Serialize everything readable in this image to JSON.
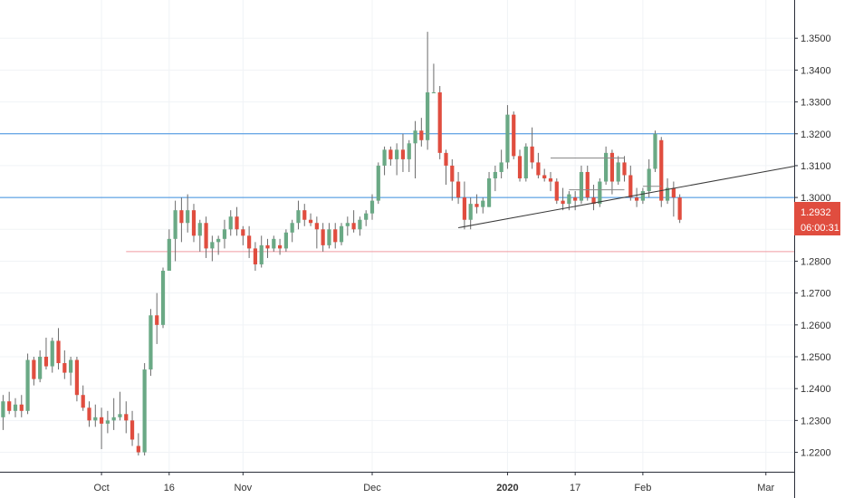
{
  "colors": {
    "up": "#6aa985",
    "down": "#e04d3f",
    "wick": "#6b6b6b",
    "grid": "#f0f3f6",
    "axis": "#2a2e39",
    "horizontal_line_blue": "#3d8ee0",
    "horizontal_line_red": "#f19aa0",
    "trendline": "#3a3a3a",
    "price_tag_bg": "#e04d3f"
  },
  "chart_data": {
    "type": "candlestick",
    "title": "",
    "y_axis_side": "right",
    "ylim": [
      1.2139,
      1.362
    ],
    "y_ticks": [
      "1.2200",
      "1.2300",
      "1.2400",
      "1.2500",
      "1.2600",
      "1.2700",
      "1.2800",
      "1.2900",
      "1.3000",
      "1.3100",
      "1.3200",
      "1.3300",
      "1.3400",
      "1.3500"
    ],
    "x_ticks": [
      {
        "label": "Oct",
        "bar": 16,
        "bold": false
      },
      {
        "label": "16",
        "bar": 27,
        "bold": false
      },
      {
        "label": "Nov",
        "bar": 39,
        "bold": false
      },
      {
        "label": "Dec",
        "bar": 60,
        "bold": false
      },
      {
        "label": "2020",
        "bar": 82,
        "bold": true
      },
      {
        "label": "17",
        "bar": 93,
        "bold": false
      },
      {
        "label": "Feb",
        "bar": 104,
        "bold": false
      },
      {
        "label": "Mar",
        "bar": 124,
        "bold": false
      }
    ],
    "x_range_bars": [
      -0.5,
      128.6
    ],
    "grid": true,
    "candles": [
      [
        1.231,
        1.238,
        1.227,
        1.236
      ],
      [
        1.236,
        1.239,
        1.232,
        1.233
      ],
      [
        1.233,
        1.237,
        1.231,
        1.235
      ],
      [
        1.235,
        1.238,
        1.231,
        1.233
      ],
      [
        1.233,
        1.251,
        1.232,
        1.249
      ],
      [
        1.249,
        1.25,
        1.241,
        1.243
      ],
      [
        1.243,
        1.252,
        1.242,
        1.25
      ],
      [
        1.25,
        1.256,
        1.246,
        1.247
      ],
      [
        1.247,
        1.256,
        1.245,
        1.255
      ],
      [
        1.255,
        1.259,
        1.246,
        1.248
      ],
      [
        1.248,
        1.252,
        1.243,
        1.245
      ],
      [
        1.245,
        1.25,
        1.241,
        1.249
      ],
      [
        1.249,
        1.25,
        1.236,
        1.238
      ],
      [
        1.238,
        1.241,
        1.233,
        1.234
      ],
      [
        1.234,
        1.236,
        1.228,
        1.23
      ],
      [
        1.23,
        1.235,
        1.228,
        1.231
      ],
      [
        1.231,
        1.234,
        1.221,
        1.229
      ],
      [
        1.229,
        1.233,
        1.226,
        1.23
      ],
      [
        1.23,
        1.237,
        1.227,
        1.231
      ],
      [
        1.231,
        1.239,
        1.23,
        1.232
      ],
      [
        1.232,
        1.236,
        1.226,
        1.23
      ],
      [
        1.23,
        1.233,
        1.222,
        1.224
      ],
      [
        1.222,
        1.226,
        1.219,
        1.22
      ],
      [
        1.22,
        1.248,
        1.219,
        1.246
      ],
      [
        1.246,
        1.265,
        1.244,
        1.263
      ],
      [
        1.263,
        1.27,
        1.254,
        1.26
      ],
      [
        1.26,
        1.278,
        1.259,
        1.277
      ],
      [
        1.277,
        1.29,
        1.277,
        1.287
      ],
      [
        1.287,
        1.299,
        1.28,
        1.296
      ],
      [
        1.296,
        1.3,
        1.286,
        1.292
      ],
      [
        1.292,
        1.301,
        1.289,
        1.296
      ],
      [
        1.296,
        1.298,
        1.286,
        1.288
      ],
      [
        1.288,
        1.293,
        1.283,
        1.292
      ],
      [
        1.292,
        1.294,
        1.281,
        1.284
      ],
      [
        1.284,
        1.288,
        1.28,
        1.286
      ],
      [
        1.286,
        1.288,
        1.282,
        1.287
      ],
      [
        1.287,
        1.293,
        1.284,
        1.29
      ],
      [
        1.29,
        1.296,
        1.288,
        1.294
      ],
      [
        1.294,
        1.297,
        1.288,
        1.29
      ],
      [
        1.29,
        1.291,
        1.285,
        1.288
      ],
      [
        1.288,
        1.291,
        1.281,
        1.284
      ],
      [
        1.284,
        1.286,
        1.277,
        1.279
      ],
      [
        1.279,
        1.288,
        1.278,
        1.285
      ],
      [
        1.285,
        1.287,
        1.281,
        1.284
      ],
      [
        1.284,
        1.288,
        1.283,
        1.287
      ],
      [
        1.285,
        1.287,
        1.282,
        1.284
      ],
      [
        1.284,
        1.29,
        1.283,
        1.289
      ],
      [
        1.289,
        1.293,
        1.286,
        1.292
      ],
      [
        1.292,
        1.299,
        1.29,
        1.296
      ],
      [
        1.296,
        1.298,
        1.291,
        1.293
      ],
      [
        1.293,
        1.295,
        1.291,
        1.292
      ],
      [
        1.292,
        1.294,
        1.284,
        1.29
      ],
      [
        1.29,
        1.292,
        1.283,
        1.285
      ],
      [
        1.285,
        1.292,
        1.284,
        1.29
      ],
      [
        1.29,
        1.292,
        1.284,
        1.286
      ],
      [
        1.286,
        1.292,
        1.285,
        1.291
      ],
      [
        1.291,
        1.294,
        1.288,
        1.292
      ],
      [
        1.292,
        1.296,
        1.289,
        1.29
      ],
      [
        1.29,
        1.294,
        1.288,
        1.293
      ],
      [
        1.293,
        1.296,
        1.291,
        1.295
      ],
      [
        1.295,
        1.301,
        1.293,
        1.299
      ],
      [
        1.299,
        1.311,
        1.298,
        1.31
      ],
      [
        1.31,
        1.316,
        1.307,
        1.315
      ],
      [
        1.315,
        1.316,
        1.31,
        1.312
      ],
      [
        1.312,
        1.317,
        1.307,
        1.315
      ],
      [
        1.315,
        1.32,
        1.308,
        1.312
      ],
      [
        1.312,
        1.318,
        1.308,
        1.317
      ],
      [
        1.317,
        1.324,
        1.306,
        1.321
      ],
      [
        1.321,
        1.325,
        1.316,
        1.318
      ],
      [
        1.318,
        1.352,
        1.315,
        1.333
      ],
      [
        1.333,
        1.342,
        1.333,
        1.333
      ],
      [
        1.333,
        1.335,
        1.312,
        1.314
      ],
      [
        1.314,
        1.315,
        1.304,
        1.31
      ],
      [
        1.31,
        1.312,
        1.299,
        1.305
      ],
      [
        1.305,
        1.308,
        1.298,
        1.3
      ],
      [
        1.3,
        1.305,
        1.29,
        1.293
      ],
      [
        1.293,
        1.3,
        1.29,
        1.298
      ],
      [
        1.298,
        1.301,
        1.295,
        1.297
      ],
      [
        1.297,
        1.3,
        1.295,
        1.299
      ],
      [
        1.297,
        1.308,
        1.297,
        1.306
      ],
      [
        1.306,
        1.31,
        1.302,
        1.308
      ],
      [
        1.308,
        1.315,
        1.306,
        1.311
      ],
      [
        1.311,
        1.329,
        1.309,
        1.326
      ],
      [
        1.326,
        1.327,
        1.312,
        1.313
      ],
      [
        1.313,
        1.315,
        1.305,
        1.306
      ],
      [
        1.306,
        1.317,
        1.305,
        1.316
      ],
      [
        1.316,
        1.322,
        1.309,
        1.311
      ],
      [
        1.311,
        1.314,
        1.306,
        1.307
      ],
      [
        1.307,
        1.309,
        1.305,
        1.306
      ],
      [
        1.306,
        1.308,
        1.302,
        1.305
      ],
      [
        1.305,
        1.306,
        1.298,
        1.299
      ],
      [
        1.299,
        1.303,
        1.296,
        1.298
      ],
      [
        1.298,
        1.302,
        1.296,
        1.301
      ],
      [
        1.3,
        1.302,
        1.296,
        1.299
      ],
      [
        1.299,
        1.31,
        1.298,
        1.308
      ],
      [
        1.308,
        1.31,
        1.299,
        1.3
      ],
      [
        1.3,
        1.304,
        1.296,
        1.298
      ],
      [
        1.298,
        1.306,
        1.297,
        1.305
      ],
      [
        1.305,
        1.316,
        1.304,
        1.314
      ],
      [
        1.314,
        1.315,
        1.301,
        1.305
      ],
      [
        1.305,
        1.313,
        1.304,
        1.311
      ],
      [
        1.311,
        1.313,
        1.305,
        1.307
      ],
      [
        1.307,
        1.31,
        1.299,
        1.3
      ],
      [
        1.3,
        1.303,
        1.297,
        1.299
      ],
      [
        1.299,
        1.303,
        1.298,
        1.302
      ],
      [
        1.302,
        1.312,
        1.3,
        1.309
      ],
      [
        1.309,
        1.321,
        1.308,
        1.32
      ],
      [
        1.318,
        1.319,
        1.297,
        1.299
      ],
      [
        1.299,
        1.306,
        1.298,
        1.303
      ],
      [
        1.303,
        1.305,
        1.294,
        1.3
      ],
      [
        1.3,
        1.301,
        1.292,
        1.293
      ]
    ],
    "horizontal_lines": [
      {
        "price": 1.32,
        "color": "horizontal_line_blue",
        "from_bar": -0.5
      },
      {
        "price": 1.3,
        "color": "horizontal_line_blue",
        "from_bar": -0.5
      },
      {
        "price": 1.283,
        "color": "horizontal_line_red",
        "from_bar": 20
      }
    ],
    "trendline": {
      "start": {
        "bar": 74,
        "price": 1.2905
      },
      "end": {
        "bar": 128.6,
        "price": 1.3098
      }
    },
    "small_levels": [
      {
        "from_bar": 89,
        "to_bar": 101,
        "price": 1.3124
      },
      {
        "from_bar": 92,
        "to_bar": 101,
        "price": 1.3024
      },
      {
        "from_bar": 104,
        "to_bar": 107,
        "price": 1.3035
      }
    ],
    "current_price": "1.2932",
    "countdown": "06:00:31"
  }
}
